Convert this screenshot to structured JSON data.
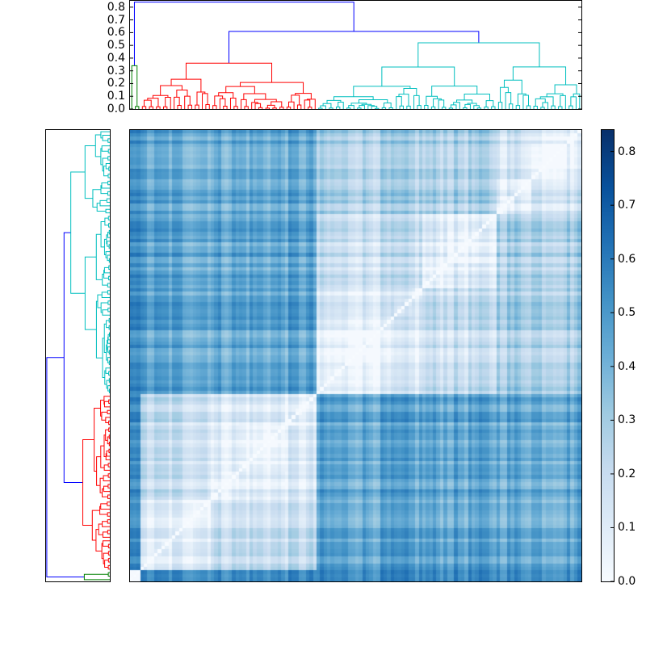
{
  "chart_data": {
    "type": "heatmap",
    "title": "",
    "description": "Clustered distance matrix (hierarchical clustering heatmap) with dendrograms on top and left, and a Blues colorbar on the right.",
    "n_leaves": 128,
    "colormap": "Blues",
    "colorbar": {
      "min": 0.0,
      "max": 0.84,
      "ticks": [
        0.0,
        0.1,
        0.2,
        0.3,
        0.4,
        0.5,
        0.6,
        0.7,
        0.8
      ],
      "tick_labels": [
        "0.0",
        "0.1",
        "0.2",
        "0.3",
        "0.4",
        "0.5",
        "0.6",
        "0.7",
        "0.8"
      ],
      "stops": [
        "#f7fbff",
        "#deebf7",
        "#c6dbef",
        "#9ecae1",
        "#6baed6",
        "#4292c6",
        "#2171b5",
        "#08519c",
        "#08306b"
      ]
    },
    "top_dendrogram": {
      "ylim": [
        0.0,
        0.85
      ],
      "ticks": [
        0.0,
        0.1,
        0.2,
        0.3,
        0.4,
        0.5,
        0.6,
        0.7,
        0.8
      ],
      "tick_labels": [
        "0.0",
        "0.1",
        "0.2",
        "0.3",
        "0.4",
        "0.5",
        "0.6",
        "0.7",
        "0.8"
      ],
      "root_height": 0.84,
      "clusters": [
        {
          "name": "green",
          "color": "#008000",
          "leaves": 3,
          "merge_height": 0.34
        },
        {
          "name": "red",
          "color": "#ff0000",
          "leaves": 50,
          "merge_height": 0.36
        },
        {
          "name": "cyan",
          "color": "#00bfbf",
          "leaves": 75,
          "merge_height": 0.52
        }
      ],
      "link_color_above_threshold": "#0000ff",
      "upper_links": [
        {
          "label": "red+cyan",
          "height": 0.61
        },
        {
          "label": "root",
          "height": 0.84
        }
      ]
    },
    "left_dendrogram": {
      "orientation": "right",
      "order_top_to_bottom": [
        "cyan",
        "red",
        "green"
      ]
    },
    "blocks": [
      {
        "name": "green",
        "start": 125,
        "end": 128
      },
      {
        "name": "red",
        "start": 75,
        "end": 125
      },
      {
        "name": "cyan",
        "start": 0,
        "end": 75
      }
    ],
    "block_mean_distance": {
      "within_red": 0.15,
      "within_cyan": 0.2,
      "red_cyan": 0.45,
      "green_other": 0.6
    },
    "axis_labels": {
      "xlabel": "",
      "ylabel": ""
    }
  }
}
